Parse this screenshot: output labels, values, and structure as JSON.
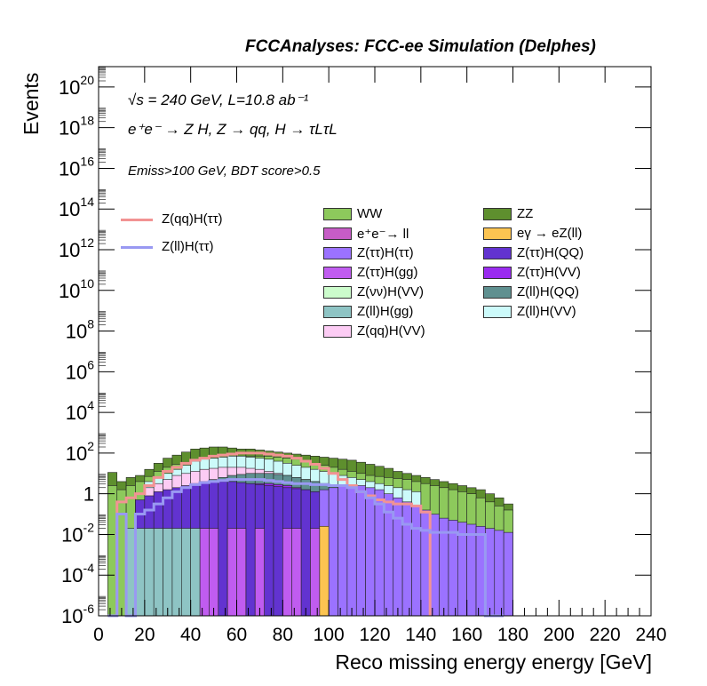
{
  "header": "FCCAnalyses: FCC-ee Simulation (Delphes)",
  "annotations": {
    "energy_lumi": "√s = 240 GeV, L=10.8 ab⁻¹",
    "process": "e⁺e⁻ → Z H, Z → qq, H → τLτL",
    "selection": "Emiss>100 GeV, BDT score>0.5"
  },
  "chart_data": {
    "type": "histogram",
    "xlabel": "Reco missing energy energy [GeV]",
    "ylabel": "Events",
    "xlim": [
      0,
      240
    ],
    "ylim": [
      1e-06,
      1e+21
    ],
    "log_y": true,
    "bin_width": 4,
    "x_ticks": [
      "0",
      "20",
      "40",
      "60",
      "80",
      "100",
      "120",
      "140",
      "160",
      "180",
      "200",
      "220",
      "240"
    ],
    "y_ticks": [
      {
        "base": "10",
        "exp": "-6",
        "value": 1e-06
      },
      {
        "base": "10",
        "exp": "-4",
        "value": 0.0001
      },
      {
        "base": "10",
        "exp": "-2",
        "value": 0.01
      },
      {
        "base": "1",
        "exp": "",
        "value": 1
      },
      {
        "base": "10",
        "exp": "2",
        "value": 100.0
      },
      {
        "base": "10",
        "exp": "4",
        "value": 10000.0
      },
      {
        "base": "10",
        "exp": "6",
        "value": 1000000.0
      },
      {
        "base": "10",
        "exp": "8",
        "value": 100000000.0
      },
      {
        "base": "10",
        "exp": "10",
        "value": 10000000000.0
      },
      {
        "base": "10",
        "exp": "12",
        "value": 1000000000000.0
      },
      {
        "base": "10",
        "exp": "14",
        "value": 100000000000000.0
      },
      {
        "base": "10",
        "exp": "16",
        "value": 1e+16
      },
      {
        "base": "10",
        "exp": "18",
        "value": 1e+18
      },
      {
        "base": "10",
        "exp": "20",
        "value": 1e+20
      }
    ],
    "stack_layers": [
      {
        "name": "ZZ",
        "color": "#5e8f2e",
        "bin_edges": [
          4,
          180
        ],
        "values_log10": [
          1.05,
          0.6,
          0.8,
          0.9,
          1.2,
          1.5,
          1.75,
          1.9,
          2.05,
          2.2,
          2.25,
          2.3,
          2.3,
          2.25,
          2.2,
          2.2,
          2.15,
          2.1,
          2.05,
          2.0,
          1.95,
          1.9,
          1.85,
          1.8,
          1.75,
          1.7,
          1.65,
          1.55,
          1.45,
          1.35,
          1.25,
          1.1,
          1.0,
          0.9,
          0.8,
          0.7,
          0.6,
          0.5,
          0.4,
          0.3,
          0.2,
          0.0,
          -0.2,
          -0.5
        ]
      },
      {
        "name": "WW",
        "color": "#8dc95c",
        "bin_edges": [
          4,
          180
        ],
        "values_log10": [
          0.4,
          0.2,
          0.4,
          0.6,
          0.85,
          1.1,
          1.3,
          1.45,
          1.55,
          1.6,
          1.65,
          1.7,
          1.75,
          1.8,
          1.85,
          1.85,
          1.85,
          1.85,
          1.8,
          1.75,
          1.7,
          1.6,
          1.5,
          1.4,
          1.3,
          1.2,
          1.1,
          1.0,
          0.9,
          0.85,
          0.8,
          0.75,
          0.7,
          0.6,
          0.5,
          0.4,
          0.3,
          0.2,
          0.1,
          0.0,
          -0.2,
          -0.4,
          -0.6,
          -0.8
        ]
      },
      {
        "name": "Z(ll)H(VV)",
        "color": "#ccfafa",
        "bin_edges": [
          20,
          140
        ],
        "values_log10": [
          0.6,
          0.8,
          1.0,
          1.2,
          1.4,
          1.6,
          1.7,
          1.75,
          1.8,
          1.85,
          1.85,
          1.8,
          1.75,
          1.7,
          1.6,
          1.5,
          1.4,
          1.3,
          1.2,
          1.1,
          1.0,
          0.9,
          0.8,
          0.7,
          0.6,
          0.5,
          0.4,
          0.3,
          0.2,
          0.1
        ]
      },
      {
        "name": "Z(qq)H(VV)",
        "color": "#fcccf4",
        "bin_edges": [
          20,
          120
        ],
        "values_log10": [
          0.3,
          0.5,
          0.7,
          0.9,
          1.0,
          1.1,
          1.2,
          1.25,
          1.3,
          1.3,
          1.3,
          1.25,
          1.2,
          1.1,
          1.0,
          0.9,
          0.8,
          0.7,
          0.6,
          0.5,
          0.4,
          0.3,
          0.2,
          0.1,
          0.0
        ]
      },
      {
        "name": "Z(ll)H(QQ)",
        "color": "#5f9090",
        "bin_edges": [
          36,
          116
        ],
        "values_log10": [
          0.3,
          0.5,
          0.6,
          0.7,
          0.8,
          0.9,
          0.95,
          1.0,
          1.0,
          1.0,
          0.95,
          0.9,
          0.8,
          0.7,
          0.6,
          0.5,
          0.4,
          0.3,
          0.2,
          0.1
        ]
      },
      {
        "name": "Z(ττ)H(VV)",
        "color": "#9a2bf0",
        "bin_edges": [
          40,
          120
        ],
        "values_log10": [
          0.0,
          0.1,
          0.2,
          0.3,
          0.4,
          0.45,
          0.5,
          0.5,
          0.5,
          0.45,
          0.4,
          0.3,
          0.2,
          0.1,
          0.0,
          -0.1,
          -0.2,
          -0.3,
          -0.4,
          -0.5
        ]
      },
      {
        "name": "Z(ττ)H(QQ)",
        "color": "#6233d0",
        "bin_edges": [
          16,
          120
        ],
        "values_log10": [
          -0.3,
          -0.1,
          0.1,
          0.2,
          0.3,
          0.4,
          0.5,
          0.55,
          0.6,
          0.6,
          0.6,
          0.55,
          0.5,
          0.45,
          0.4,
          0.35,
          0.3,
          0.25,
          0.2,
          0.1,
          0.0,
          -0.1,
          -0.2,
          -0.4,
          -0.6,
          -0.8
        ]
      },
      {
        "name": "Z(ττ)H(ττ)",
        "color": "#9b72ff",
        "bin_edges": [
          96,
          180
        ],
        "values_log10": [
          0.2,
          0.3,
          0.4,
          0.4,
          0.4,
          0.3,
          0.2,
          0.0,
          -0.2,
          -0.4,
          -0.6,
          -0.8,
          -1.0,
          -1.2,
          -1.3,
          -1.4,
          -1.5,
          -1.6,
          -1.7,
          -1.8,
          -1.9
        ]
      },
      {
        "name": "eγ → eZ(ll)",
        "color": "#fcc451",
        "bin_edges": [
          96,
          100
        ],
        "values_log10": [
          -1.6
        ]
      },
      {
        "name": "Z(ττ)H(gg)",
        "color": "#c05cf0",
        "bin_edges": [
          44,
          96
        ],
        "values_log10": [
          -1.7,
          -1.7,
          -6,
          -1.7,
          -1.7,
          -6,
          -1.7,
          -6,
          -6,
          -1.7,
          -1.7,
          -6,
          -1.7
        ]
      },
      {
        "name": "Z(ll)H(gg)",
        "color": "#8ec4c4",
        "bin_edges": [
          12,
          44
        ],
        "values_log10": [
          -1.7,
          -1.7,
          -1.7,
          -1.7,
          -1.7,
          -1.7,
          -1.7,
          -1.7
        ]
      },
      {
        "name": "e⁺e⁻→ ll",
        "color": "#c65cc6",
        "bin_edges": [
          100,
          104
        ],
        "values_log10": [
          -6
        ]
      },
      {
        "name": "Z(νν)H(VV)",
        "color": "#ccfccc",
        "bin_edges": [
          100,
          104
        ],
        "values_log10": [
          -6
        ]
      }
    ],
    "signal_lines": [
      {
        "name": "Z(qq)H(ττ)",
        "color": "#f29393",
        "bin_edges": [
          4,
          144
        ],
        "values_log10": [
          -6,
          -0.4,
          -0.2,
          0.0,
          0.4,
          0.8,
          1.1,
          1.3,
          1.5,
          1.65,
          1.75,
          1.85,
          1.9,
          1.95,
          2.0,
          2.0,
          2.0,
          1.95,
          1.9,
          1.85,
          1.75,
          1.6,
          1.45,
          1.25,
          1.0,
          0.7,
          0.4,
          0.1,
          -0.1,
          -0.3,
          -0.4,
          -0.5,
          -0.5,
          -0.6,
          -0.9
        ]
      },
      {
        "name": "Z(ll)H(ττ)",
        "color": "#9999f2",
        "bin_edges": [
          4,
          176
        ],
        "values_log10": [
          -6,
          -1.0,
          -6,
          -1.0,
          -0.8,
          -0.5,
          -0.2,
          0.1,
          0.3,
          0.45,
          0.55,
          0.6,
          0.65,
          0.7,
          0.7,
          0.7,
          0.7,
          0.65,
          0.6,
          0.55,
          0.5,
          0.5,
          0.45,
          0.45,
          0.4,
          0.4,
          0.3,
          0.1,
          -0.2,
          -0.5,
          -0.9,
          -1.2,
          -1.5,
          -1.7,
          -1.8,
          -1.9,
          -1.9,
          -1.9,
          -2.0,
          -2.0,
          -2.0,
          -6,
          -6
        ]
      }
    ],
    "legend": {
      "lines": [
        {
          "name": "Z(qq)H(ττ)",
          "color": "#f29393"
        },
        {
          "name": "Z(ll)H(ττ)",
          "color": "#9999f2"
        }
      ],
      "fills": [
        {
          "name": "WW",
          "color": "#8dc95c"
        },
        {
          "name": "ZZ",
          "color": "#5e8f2e"
        },
        {
          "name": "e⁺e⁻→ ll",
          "color": "#c65cc6"
        },
        {
          "name": "eγ → eZ(ll)",
          "color": "#fcc451"
        },
        {
          "name": "Z(ττ)H(ττ)",
          "color": "#9b72ff"
        },
        {
          "name": "Z(ττ)H(QQ)",
          "color": "#6233d0"
        },
        {
          "name": "Z(ττ)H(gg)",
          "color": "#c05cf0"
        },
        {
          "name": "Z(ττ)H(VV)",
          "color": "#9a2bf0"
        },
        {
          "name": "Z(νν)H(VV)",
          "color": "#ccfccc"
        },
        {
          "name": "Z(ll)H(QQ)",
          "color": "#5f9090"
        },
        {
          "name": "Z(ll)H(gg)",
          "color": "#8ec4c4"
        },
        {
          "name": "Z(ll)H(VV)",
          "color": "#ccfafa"
        },
        {
          "name": "Z(qq)H(VV)",
          "color": "#fcccf4"
        }
      ]
    }
  }
}
